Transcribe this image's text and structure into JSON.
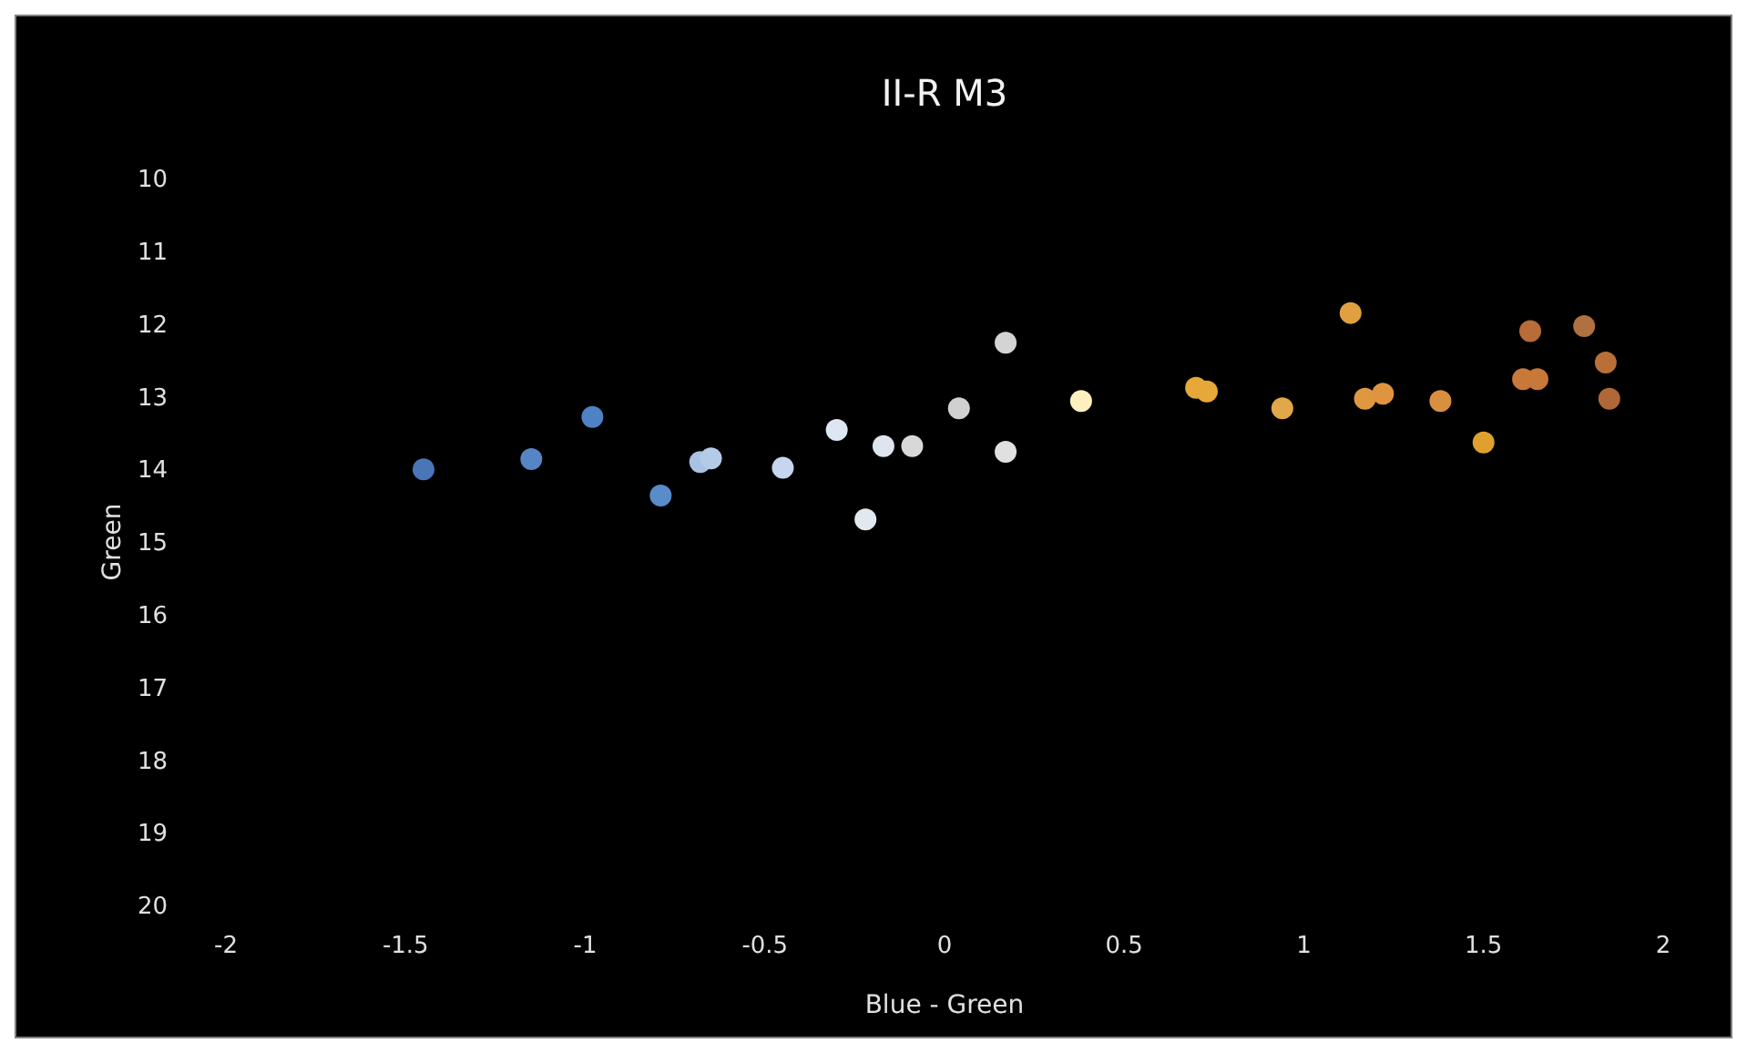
{
  "chart_data": {
    "type": "scatter",
    "title": "II-R M3",
    "xlabel": "Blue - Green",
    "ylabel": "Green",
    "xlim": [
      -2,
      2
    ],
    "xticks": [
      -2,
      -1.5,
      -1,
      -0.5,
      0,
      0.5,
      1,
      1.5,
      2
    ],
    "ylim": [
      20,
      10
    ],
    "yticks": [
      10,
      11,
      12,
      13,
      14,
      15,
      16,
      17,
      18,
      19,
      20
    ],
    "grid": false,
    "marker": "circle",
    "x": [
      -1.45,
      -1.15,
      -0.98,
      -0.79,
      -0.68,
      -0.65,
      -0.45,
      -0.3,
      -0.22,
      -0.17,
      -0.09,
      0.04,
      0.17,
      0.17,
      0.38,
      0.7,
      0.73,
      0.94,
      1.13,
      1.17,
      1.22,
      1.38,
      1.5,
      1.61,
      1.65,
      1.63,
      1.78,
      1.84,
      1.85
    ],
    "values": [
      14.0,
      13.86,
      13.28,
      14.36,
      13.9,
      13.85,
      13.98,
      13.46,
      14.69,
      13.68,
      13.68,
      13.16,
      12.26,
      13.76,
      13.06,
      12.88,
      12.93,
      13.16,
      11.85,
      13.03,
      12.96,
      13.06,
      13.63,
      12.76,
      12.76,
      12.1,
      12.03,
      12.53,
      13.03
    ],
    "colors": [
      "#4a76b8",
      "#5585c4",
      "#4f82c4",
      "#5a8ccc",
      "#a9c2e4",
      "#b4cbe8",
      "#c5d6ee",
      "#dde6f2",
      "#e2e8f0",
      "#dfe5ee",
      "#d8d8d8",
      "#d0d0d0",
      "#d4d4d4",
      "#e0e0e0",
      "#fff0c0",
      "#e6a838",
      "#e6a838",
      "#e0a848",
      "#e0a040",
      "#e09840",
      "#e09440",
      "#d89040",
      "#e0a030",
      "#c87838",
      "#c87838",
      "#b86c38",
      "#b07040",
      "#b87038",
      "#b06838"
    ]
  }
}
